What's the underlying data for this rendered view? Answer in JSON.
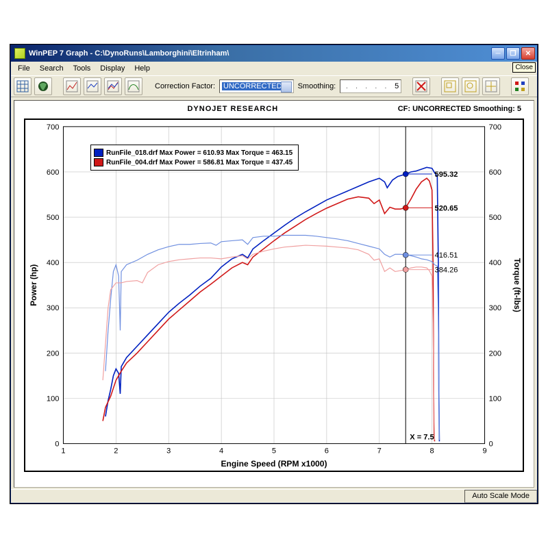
{
  "window": {
    "title": "WinPEP 7   Graph - C:\\DynoRuns\\Lamborghini\\Eltrinham\\",
    "close_tooltip": "Close"
  },
  "menu": {
    "items": [
      "File",
      "Search",
      "Tools",
      "Display",
      "Help"
    ]
  },
  "toolbar": {
    "correction_label": "Correction Factor:",
    "correction_value": "UNCORRECTED",
    "smoothing_label": "Smoothing:",
    "smoothing_value": "5"
  },
  "status": {
    "right": "Auto Scale Mode"
  },
  "chart": {
    "header_center": "DYNOJET RESEARCH",
    "header_right": "CF: UNCORRECTED  Smoothing: 5",
    "x_label": "Engine Speed (RPM x1000)",
    "y_left_label": "Power (hp)",
    "y_right_label": "Torque (ft-lbs)",
    "xlim": [
      1,
      9
    ],
    "ylim": [
      0,
      700
    ],
    "x_ticks": [
      1,
      2,
      3,
      4,
      5,
      6,
      7,
      8,
      9
    ],
    "y_ticks": [
      0,
      100,
      200,
      300,
      400,
      500,
      600,
      700
    ],
    "grid_color": "#c0c0c0",
    "cursor_x": 7.5,
    "cursor_label": "X = 7.5",
    "legend": [
      {
        "color": "#0020c0",
        "text": "RunFile_018.drf Max Power = 610.93 Max Torque = 463.15"
      },
      {
        "color": "#d01818",
        "text": "RunFile_004.drf Max Power = 586.81 Max Torque = 437.45"
      }
    ],
    "markers": [
      {
        "x": 7.5,
        "y": 595.32,
        "color": "#0020c0",
        "label": "595.32",
        "bold": true
      },
      {
        "x": 7.5,
        "y": 520.65,
        "color": "#d01818",
        "label": "520.65",
        "bold": true
      },
      {
        "x": 7.5,
        "y": 416.51,
        "color": "#7090e0",
        "label": "416.51",
        "bold": false
      },
      {
        "x": 7.5,
        "y": 384.26,
        "color": "#f0a0a0",
        "label": "384.26",
        "bold": false
      }
    ],
    "series": [
      {
        "name": "power_018",
        "color": "#0020c0",
        "width": 1.6,
        "points": [
          [
            1.8,
            60
          ],
          [
            1.85,
            95
          ],
          [
            1.9,
            120
          ],
          [
            1.95,
            150
          ],
          [
            2.0,
            165
          ],
          [
            2.05,
            155
          ],
          [
            2.08,
            110
          ],
          [
            2.1,
            170
          ],
          [
            2.2,
            190
          ],
          [
            2.4,
            215
          ],
          [
            2.6,
            240
          ],
          [
            2.8,
            265
          ],
          [
            3.0,
            290
          ],
          [
            3.2,
            310
          ],
          [
            3.4,
            328
          ],
          [
            3.6,
            348
          ],
          [
            3.8,
            365
          ],
          [
            4.0,
            390
          ],
          [
            4.2,
            408
          ],
          [
            4.4,
            418
          ],
          [
            4.5,
            410
          ],
          [
            4.6,
            430
          ],
          [
            4.8,
            448
          ],
          [
            5.0,
            465
          ],
          [
            5.2,
            482
          ],
          [
            5.4,
            498
          ],
          [
            5.6,
            512
          ],
          [
            5.8,
            525
          ],
          [
            6.0,
            538
          ],
          [
            6.2,
            548
          ],
          [
            6.4,
            558
          ],
          [
            6.6,
            568
          ],
          [
            6.8,
            578
          ],
          [
            7.0,
            586
          ],
          [
            7.1,
            578
          ],
          [
            7.15,
            565
          ],
          [
            7.25,
            582
          ],
          [
            7.35,
            590
          ],
          [
            7.5,
            595
          ],
          [
            7.6,
            600
          ],
          [
            7.7,
            602
          ],
          [
            7.8,
            606
          ],
          [
            7.9,
            610
          ],
          [
            8.0,
            608
          ],
          [
            8.05,
            598
          ],
          [
            8.1,
            590
          ],
          [
            8.12,
            400
          ],
          [
            8.13,
            120
          ],
          [
            8.14,
            5
          ]
        ]
      },
      {
        "name": "power_004",
        "color": "#d01818",
        "width": 1.6,
        "points": [
          [
            1.75,
            50
          ],
          [
            1.8,
            80
          ],
          [
            1.9,
            105
          ],
          [
            2.0,
            140
          ],
          [
            2.1,
            160
          ],
          [
            2.2,
            178
          ],
          [
            2.4,
            200
          ],
          [
            2.6,
            225
          ],
          [
            2.8,
            250
          ],
          [
            3.0,
            275
          ],
          [
            3.2,
            295
          ],
          [
            3.4,
            315
          ],
          [
            3.6,
            335
          ],
          [
            3.8,
            352
          ],
          [
            4.0,
            370
          ],
          [
            4.2,
            388
          ],
          [
            4.4,
            400
          ],
          [
            4.5,
            395
          ],
          [
            4.6,
            412
          ],
          [
            4.8,
            430
          ],
          [
            5.0,
            448
          ],
          [
            5.2,
            465
          ],
          [
            5.4,
            480
          ],
          [
            5.6,
            495
          ],
          [
            5.8,
            508
          ],
          [
            6.0,
            520
          ],
          [
            6.2,
            530
          ],
          [
            6.4,
            540
          ],
          [
            6.6,
            545
          ],
          [
            6.8,
            542
          ],
          [
            6.9,
            530
          ],
          [
            7.0,
            538
          ],
          [
            7.1,
            508
          ],
          [
            7.2,
            522
          ],
          [
            7.3,
            518
          ],
          [
            7.4,
            518
          ],
          [
            7.5,
            521
          ],
          [
            7.6,
            540
          ],
          [
            7.7,
            562
          ],
          [
            7.8,
            578
          ],
          [
            7.9,
            586
          ],
          [
            7.95,
            580
          ],
          [
            8.0,
            560
          ],
          [
            8.02,
            400
          ],
          [
            8.03,
            150
          ],
          [
            8.04,
            20
          ],
          [
            8.05,
            5
          ]
        ]
      },
      {
        "name": "torque_018",
        "color": "#7090e0",
        "width": 1.2,
        "points": [
          [
            1.8,
            160
          ],
          [
            1.85,
            250
          ],
          [
            1.9,
            320
          ],
          [
            1.95,
            380
          ],
          [
            2.0,
            395
          ],
          [
            2.05,
            370
          ],
          [
            2.08,
            250
          ],
          [
            2.1,
            380
          ],
          [
            2.2,
            395
          ],
          [
            2.4,
            405
          ],
          [
            2.6,
            418
          ],
          [
            2.8,
            428
          ],
          [
            3.0,
            435
          ],
          [
            3.2,
            440
          ],
          [
            3.4,
            440
          ],
          [
            3.6,
            442
          ],
          [
            3.8,
            443
          ],
          [
            3.9,
            438
          ],
          [
            4.0,
            446
          ],
          [
            4.2,
            448
          ],
          [
            4.4,
            450
          ],
          [
            4.5,
            440
          ],
          [
            4.6,
            455
          ],
          [
            4.8,
            458
          ],
          [
            5.0,
            458
          ],
          [
            5.2,
            460
          ],
          [
            5.4,
            460
          ],
          [
            5.6,
            460
          ],
          [
            5.8,
            458
          ],
          [
            6.0,
            455
          ],
          [
            6.2,
            452
          ],
          [
            6.4,
            448
          ],
          [
            6.6,
            442
          ],
          [
            6.8,
            436
          ],
          [
            7.0,
            430
          ],
          [
            7.1,
            418
          ],
          [
            7.2,
            412
          ],
          [
            7.3,
            418
          ],
          [
            7.4,
            418
          ],
          [
            7.5,
            417
          ],
          [
            7.6,
            415
          ],
          [
            7.7,
            412
          ],
          [
            7.8,
            408
          ],
          [
            7.9,
            406
          ],
          [
            8.0,
            402
          ],
          [
            8.05,
            395
          ],
          [
            8.1,
            392
          ],
          [
            8.12,
            280
          ],
          [
            8.14,
            8
          ]
        ]
      },
      {
        "name": "torque_004",
        "color": "#f0a0a0",
        "width": 1.2,
        "points": [
          [
            1.75,
            140
          ],
          [
            1.8,
            220
          ],
          [
            1.85,
            300
          ],
          [
            1.9,
            340
          ],
          [
            2.0,
            355
          ],
          [
            2.1,
            355
          ],
          [
            2.2,
            358
          ],
          [
            2.4,
            360
          ],
          [
            2.5,
            355
          ],
          [
            2.6,
            378
          ],
          [
            2.8,
            395
          ],
          [
            3.0,
            402
          ],
          [
            3.2,
            406
          ],
          [
            3.4,
            408
          ],
          [
            3.6,
            410
          ],
          [
            3.8,
            410
          ],
          [
            4.0,
            408
          ],
          [
            4.2,
            412
          ],
          [
            4.4,
            415
          ],
          [
            4.5,
            408
          ],
          [
            4.6,
            418
          ],
          [
            4.8,
            425
          ],
          [
            5.0,
            430
          ],
          [
            5.2,
            434
          ],
          [
            5.4,
            436
          ],
          [
            5.6,
            438
          ],
          [
            5.8,
            437
          ],
          [
            6.0,
            436
          ],
          [
            6.2,
            434
          ],
          [
            6.4,
            432
          ],
          [
            6.6,
            428
          ],
          [
            6.8,
            418
          ],
          [
            6.9,
            405
          ],
          [
            7.0,
            408
          ],
          [
            7.1,
            380
          ],
          [
            7.2,
            388
          ],
          [
            7.3,
            380
          ],
          [
            7.4,
            382
          ],
          [
            7.5,
            384
          ],
          [
            7.6,
            388
          ],
          [
            7.7,
            390
          ],
          [
            7.8,
            390
          ],
          [
            7.9,
            388
          ],
          [
            7.95,
            382
          ],
          [
            8.0,
            370
          ],
          [
            8.02,
            260
          ],
          [
            8.04,
            60
          ],
          [
            8.05,
            8
          ]
        ]
      }
    ]
  }
}
